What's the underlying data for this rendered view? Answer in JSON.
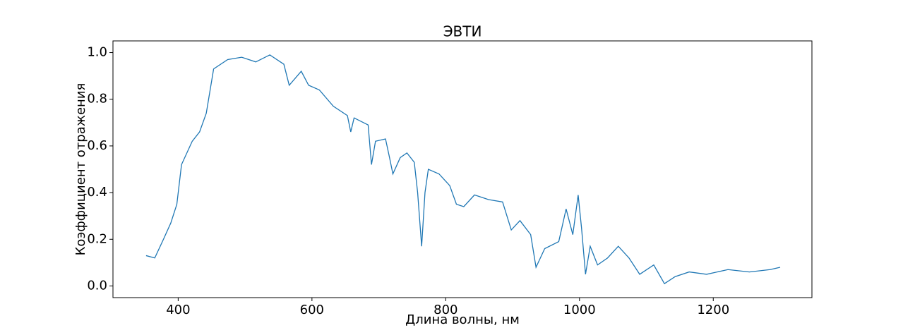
{
  "chart_data": {
    "type": "line",
    "title": "ЭВТИ",
    "x_label": "Длина волны, нм",
    "y_label": "Коэффициент отражения",
    "x": [
      352,
      365,
      378,
      389,
      398,
      405,
      421,
      432,
      442,
      453,
      474,
      495,
      516,
      537,
      558,
      566,
      584,
      595,
      611,
      632,
      653,
      658,
      663,
      684,
      689,
      695,
      710,
      716,
      721,
      732,
      742,
      753,
      758,
      764,
      769,
      774,
      790,
      806,
      816,
      827,
      843,
      864,
      885,
      898,
      911,
      927,
      935,
      948,
      969,
      980,
      990,
      998,
      1003,
      1009,
      1016,
      1027,
      1042,
      1058,
      1074,
      1090,
      1111,
      1127,
      1143,
      1164,
      1190,
      1222,
      1254,
      1285,
      1300
    ],
    "series": [
      {
        "name": "ЭВТИ",
        "color": "#1f77b4",
        "values": [
          0.13,
          0.12,
          0.2,
          0.27,
          0.35,
          0.52,
          0.62,
          0.66,
          0.74,
          0.93,
          0.97,
          0.98,
          0.96,
          0.99,
          0.95,
          0.86,
          0.92,
          0.86,
          0.84,
          0.77,
          0.73,
          0.66,
          0.72,
          0.69,
          0.52,
          0.62,
          0.63,
          0.55,
          0.48,
          0.55,
          0.57,
          0.53,
          0.4,
          0.17,
          0.4,
          0.5,
          0.48,
          0.43,
          0.35,
          0.34,
          0.39,
          0.37,
          0.36,
          0.24,
          0.28,
          0.22,
          0.08,
          0.16,
          0.19,
          0.33,
          0.22,
          0.39,
          0.25,
          0.05,
          0.17,
          0.09,
          0.12,
          0.17,
          0.12,
          0.05,
          0.09,
          0.01,
          0.04,
          0.06,
          0.05,
          0.07,
          0.06,
          0.07,
          0.08
        ]
      }
    ],
    "xlim": [
      302.5,
      1347.5
    ],
    "xticks": [
      400,
      600,
      800,
      1000,
      1200
    ],
    "ylim": [
      -0.05,
      1.05
    ],
    "yticks": [
      {
        "value": 0,
        "label": "0.0"
      },
      {
        "value": 0.2,
        "label": "0.2"
      },
      {
        "value": 0.4,
        "label": "0.4"
      },
      {
        "value": 0.6,
        "label": "0.6"
      },
      {
        "value": 0.8,
        "label": "0.8"
      },
      {
        "value": 1,
        "label": "1.0"
      }
    ],
    "grid": false
  }
}
